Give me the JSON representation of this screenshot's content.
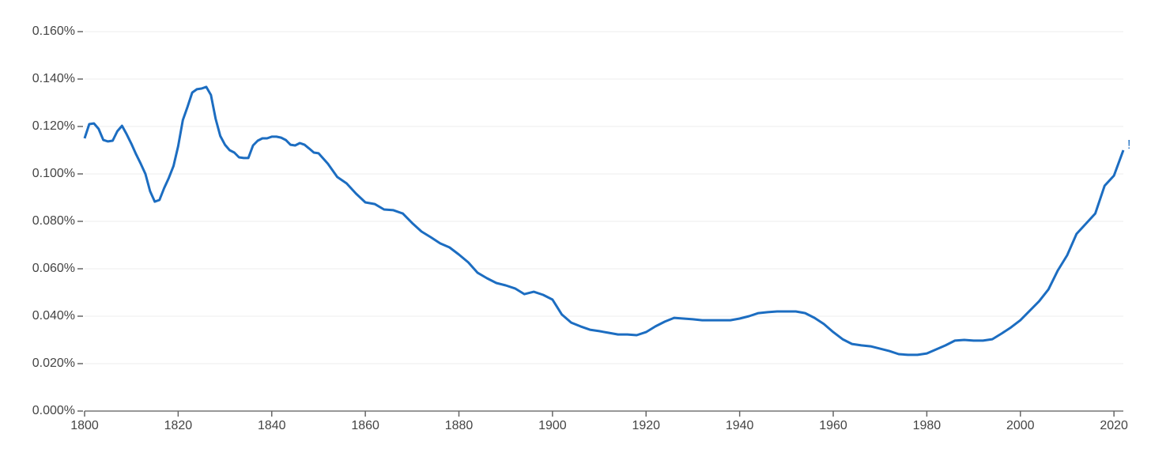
{
  "chart_data": {
    "type": "line",
    "x": [
      1800,
      1801,
      1802,
      1803,
      1804,
      1805,
      1806,
      1807,
      1808,
      1809,
      1810,
      1811,
      1812,
      1813,
      1814,
      1815,
      1816,
      1817,
      1818,
      1819,
      1820,
      1821,
      1822,
      1823,
      1824,
      1825,
      1826,
      1827,
      1828,
      1829,
      1830,
      1831,
      1832,
      1833,
      1834,
      1835,
      1836,
      1837,
      1838,
      1839,
      1840,
      1841,
      1842,
      1843,
      1844,
      1845,
      1846,
      1847,
      1848,
      1849,
      1850,
      1852,
      1854,
      1856,
      1858,
      1860,
      1862,
      1864,
      1866,
      1868,
      1870,
      1872,
      1874,
      1876,
      1878,
      1880,
      1882,
      1884,
      1886,
      1888,
      1890,
      1892,
      1894,
      1896,
      1898,
      1900,
      1902,
      1904,
      1906,
      1908,
      1910,
      1912,
      1914,
      1916,
      1918,
      1920,
      1922,
      1924,
      1926,
      1928,
      1930,
      1932,
      1934,
      1936,
      1938,
      1940,
      1942,
      1944,
      1946,
      1948,
      1950,
      1952,
      1954,
      1956,
      1958,
      1960,
      1962,
      1964,
      1966,
      1968,
      1970,
      1972,
      1974,
      1976,
      1978,
      1980,
      1982,
      1984,
      1986,
      1988,
      1990,
      1992,
      1994,
      1996,
      1998,
      2000,
      2002,
      2004,
      2006,
      2008,
      2010,
      2012,
      2014,
      2016,
      2018,
      2020,
      2022
    ],
    "series": [
      {
        "name": "!",
        "color": "#1c6dc1",
        "values": [
          0.115,
          0.121,
          0.1213,
          0.119,
          0.1143,
          0.1137,
          0.114,
          0.118,
          0.1203,
          0.1167,
          0.1127,
          0.1083,
          0.1043,
          0.1,
          0.0927,
          0.0883,
          0.089,
          0.094,
          0.0983,
          0.1033,
          0.1117,
          0.1227,
          0.1283,
          0.1343,
          0.1357,
          0.136,
          0.1367,
          0.1333,
          0.1233,
          0.116,
          0.1123,
          0.11,
          0.109,
          0.107,
          0.1067,
          0.1067,
          0.112,
          0.114,
          0.115,
          0.115,
          0.1157,
          0.1157,
          0.1153,
          0.1143,
          0.1123,
          0.112,
          0.113,
          0.1123,
          0.1107,
          0.109,
          0.1087,
          0.1043,
          0.0987,
          0.096,
          0.0917,
          0.088,
          0.0873,
          0.085,
          0.0847,
          0.0833,
          0.0793,
          0.0757,
          0.0733,
          0.0707,
          0.069,
          0.066,
          0.0627,
          0.0583,
          0.056,
          0.054,
          0.053,
          0.0517,
          0.0493,
          0.0503,
          0.049,
          0.047,
          0.0407,
          0.0373,
          0.0357,
          0.0343,
          0.0337,
          0.033,
          0.0323,
          0.0323,
          0.032,
          0.0333,
          0.0357,
          0.0377,
          0.0393,
          0.039,
          0.0387,
          0.0383,
          0.0383,
          0.0383,
          0.0383,
          0.039,
          0.04,
          0.0413,
          0.0417,
          0.042,
          0.042,
          0.042,
          0.0413,
          0.0393,
          0.0367,
          0.0333,
          0.0303,
          0.0283,
          0.0277,
          0.0273,
          0.0263,
          0.0253,
          0.024,
          0.0237,
          0.0237,
          0.0243,
          0.026,
          0.0277,
          0.0297,
          0.03,
          0.0297,
          0.0297,
          0.0303,
          0.0327,
          0.0353,
          0.0383,
          0.0423,
          0.0463,
          0.0513,
          0.0593,
          0.0657,
          0.0747,
          0.079,
          0.0833,
          0.095,
          0.0993,
          0.11
        ]
      }
    ],
    "xlim": [
      1800,
      2022
    ],
    "xticks": [
      1800,
      1820,
      1840,
      1860,
      1880,
      1900,
      1920,
      1940,
      1960,
      1980,
      2000,
      2020
    ],
    "ylim": [
      0,
      0.16
    ],
    "yticks": [
      {
        "value": 0,
        "label": "0.000%"
      },
      {
        "value": 0.02,
        "label": "0.020%"
      },
      {
        "value": 0.04,
        "label": "0.040%"
      },
      {
        "value": 0.06,
        "label": "0.060%"
      },
      {
        "value": 0.08,
        "label": "0.080%"
      },
      {
        "value": 0.1,
        "label": "0.100%"
      },
      {
        "value": 0.12,
        "label": "0.120%"
      },
      {
        "value": 0.14,
        "label": "0.140%"
      },
      {
        "value": 0.16,
        "label": "0.160%"
      }
    ],
    "grid": true
  }
}
